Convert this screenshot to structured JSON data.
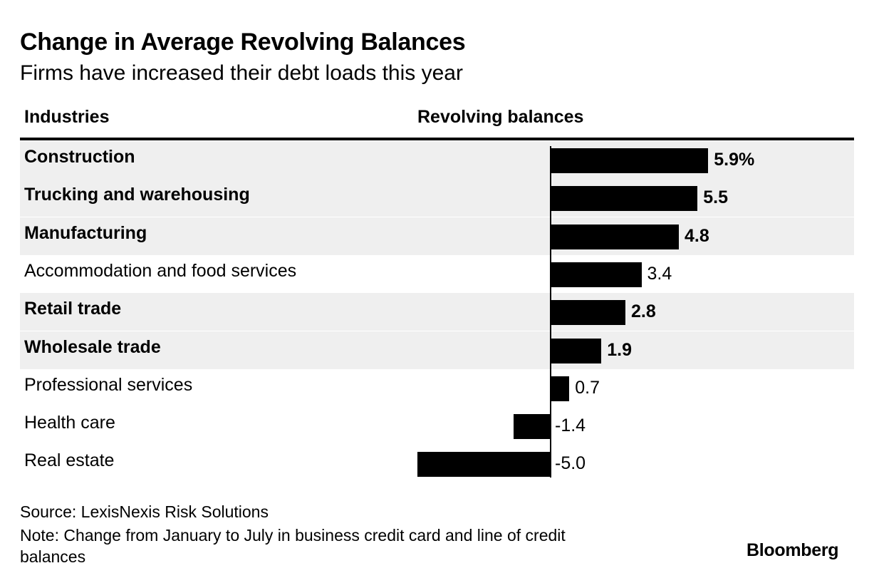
{
  "title": "Change in Average Revolving Balances",
  "subtitle": "Firms have increased their debt loads this year",
  "columns": {
    "industries": "Industries",
    "revolving": "Revolving balances"
  },
  "footer": {
    "source": "Source: LexisNexis Risk Solutions",
    "note": "Note: Change from January to July in business credit card and line of credit balances"
  },
  "logo": "Bloomberg",
  "colors": {
    "bar": "#000000",
    "highlight_row": "#efefef",
    "background": "#ffffff"
  },
  "chart_data": {
    "type": "bar",
    "orientation": "horizontal",
    "title": "Change in Average Revolving Balances",
    "subtitle": "Firms have increased their debt loads this year",
    "unit": "%",
    "categories": [
      "Construction",
      "Trucking and warehousing",
      "Manufacturing",
      "Accommodation and food services",
      "Retail trade",
      "Wholesale trade",
      "Professional services",
      "Health care",
      "Real estate"
    ],
    "values": [
      5.9,
      5.5,
      4.8,
      3.4,
      2.8,
      1.9,
      0.7,
      -1.4,
      -5.0
    ],
    "value_labels": [
      "5.9%",
      "5.5",
      "4.8",
      "3.4",
      "2.8",
      "1.9",
      "0.7",
      "-1.4",
      "-5.0"
    ],
    "highlighted": [
      true,
      true,
      true,
      false,
      true,
      true,
      false,
      false,
      false
    ]
  }
}
